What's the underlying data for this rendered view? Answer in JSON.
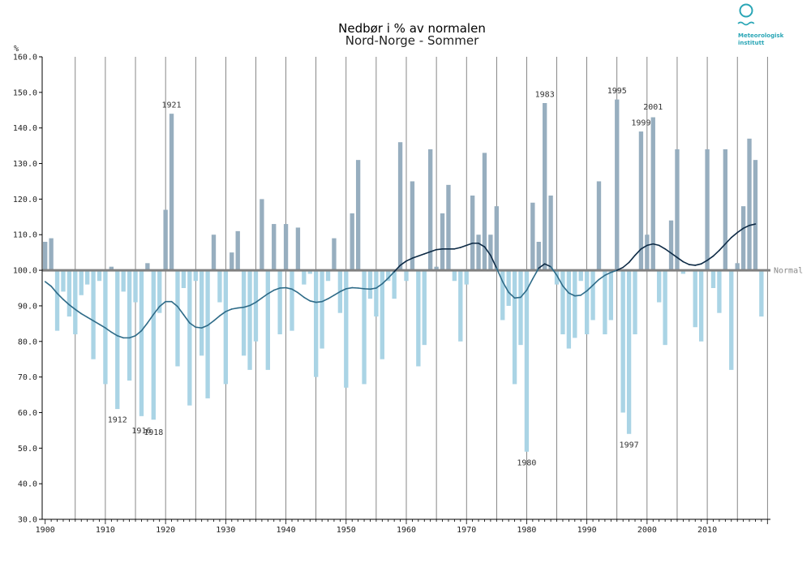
{
  "logo": {
    "line1": "Meteorologisk",
    "line2": "institutt",
    "color": "#2aa6b6"
  },
  "chart_data": {
    "type": "bar",
    "title": "Nedbør i % av normalen",
    "subtitle": "Nord-Norge - Sommer",
    "ylabel": "%",
    "ylim": [
      30,
      160
    ],
    "yticks": [
      30,
      40,
      50,
      60,
      70,
      80,
      90,
      100,
      110,
      120,
      130,
      140,
      150,
      160
    ],
    "ytick_labels": [
      "30.0",
      "40.0",
      "50.0",
      "60.0",
      "70.0",
      "80.0",
      "90.0",
      "100.0",
      "110.0",
      "120.0",
      "130.0",
      "140.0",
      "150.0",
      "160.0"
    ],
    "xlim": [
      1899.5,
      2020.5
    ],
    "xticks": [
      1900,
      1910,
      1920,
      1930,
      1940,
      1950,
      1960,
      1970,
      1980,
      1990,
      2000,
      2010
    ],
    "baseline": 100,
    "baseline_label": "Normal",
    "colors": {
      "above": "#97aebf",
      "below": "#aad4e5",
      "trend_low": "#2e6b88",
      "trend_high": "#0d2a45",
      "normal_line": "#808080"
    },
    "years": [
      1900,
      1901,
      1902,
      1903,
      1904,
      1905,
      1906,
      1907,
      1908,
      1909,
      1910,
      1911,
      1912,
      1913,
      1914,
      1915,
      1916,
      1917,
      1918,
      1919,
      1920,
      1921,
      1922,
      1923,
      1924,
      1925,
      1926,
      1927,
      1928,
      1929,
      1930,
      1931,
      1932,
      1933,
      1934,
      1935,
      1936,
      1937,
      1938,
      1939,
      1940,
      1941,
      1942,
      1943,
      1944,
      1945,
      1946,
      1947,
      1948,
      1949,
      1950,
      1951,
      1952,
      1953,
      1954,
      1955,
      1956,
      1957,
      1958,
      1959,
      1960,
      1961,
      1962,
      1963,
      1964,
      1965,
      1966,
      1967,
      1968,
      1969,
      1970,
      1971,
      1972,
      1973,
      1974,
      1975,
      1976,
      1977,
      1978,
      1979,
      1980,
      1981,
      1982,
      1983,
      1984,
      1985,
      1986,
      1987,
      1988,
      1989,
      1990,
      1991,
      1992,
      1993,
      1994,
      1995,
      1996,
      1997,
      1998,
      1999,
      2000,
      2001,
      2002,
      2003,
      2004,
      2005,
      2006,
      2007,
      2008,
      2009,
      2010,
      2011,
      2012,
      2013,
      2014,
      2015,
      2016,
      2017,
      2018,
      2019
    ],
    "values": [
      108,
      109,
      83,
      94,
      87,
      82,
      93,
      96,
      75,
      97,
      68,
      101,
      61,
      94,
      69,
      91,
      59,
      102,
      58,
      88,
      117,
      144,
      73,
      95,
      62,
      97,
      76,
      64,
      110,
      91,
      68,
      105,
      111,
      76,
      72,
      80,
      120,
      72,
      113,
      82,
      113,
      83,
      112,
      96,
      99,
      70,
      78,
      97,
      109,
      88,
      67,
      116,
      131,
      68,
      92,
      87,
      75,
      97,
      92,
      136,
      97,
      125,
      73,
      79,
      134,
      101,
      116,
      124,
      97,
      80,
      96,
      121,
      110,
      133,
      110,
      118,
      86,
      90,
      68,
      79,
      49,
      119,
      108,
      147,
      121,
      96,
      82,
      78,
      81,
      97,
      82,
      86,
      125,
      82,
      86,
      148,
      60,
      54,
      82,
      139,
      110,
      143,
      91,
      79,
      114,
      134,
      99,
      100,
      84,
      80,
      134,
      95,
      88,
      134,
      72,
      102,
      118,
      137,
      131,
      87
    ],
    "trend": [
      {
        "year": 1900,
        "value": 96.8
      },
      {
        "year": 1901,
        "value": 95.5
      },
      {
        "year": 1902,
        "value": 93.5
      },
      {
        "year": 1903,
        "value": 91.8
      },
      {
        "year": 1904,
        "value": 90.3
      },
      {
        "year": 1905,
        "value": 89.0
      },
      {
        "year": 1906,
        "value": 87.8
      },
      {
        "year": 1907,
        "value": 86.8
      },
      {
        "year": 1908,
        "value": 85.8
      },
      {
        "year": 1909,
        "value": 84.8
      },
      {
        "year": 1910,
        "value": 83.8
      },
      {
        "year": 1911,
        "value": 82.6
      },
      {
        "year": 1912,
        "value": 81.6
      },
      {
        "year": 1913,
        "value": 81.0
      },
      {
        "year": 1914,
        "value": 81.0
      },
      {
        "year": 1915,
        "value": 81.6
      },
      {
        "year": 1916,
        "value": 83.0
      },
      {
        "year": 1917,
        "value": 85.2
      },
      {
        "year": 1918,
        "value": 87.6
      },
      {
        "year": 1919,
        "value": 89.8
      },
      {
        "year": 1920,
        "value": 91.2
      },
      {
        "year": 1921,
        "value": 91.2
      },
      {
        "year": 1922,
        "value": 89.8
      },
      {
        "year": 1923,
        "value": 87.5
      },
      {
        "year": 1924,
        "value": 85.2
      },
      {
        "year": 1925,
        "value": 84.0
      },
      {
        "year": 1926,
        "value": 83.8
      },
      {
        "year": 1927,
        "value": 84.5
      },
      {
        "year": 1928,
        "value": 85.8
      },
      {
        "year": 1929,
        "value": 87.2
      },
      {
        "year": 1930,
        "value": 88.4
      },
      {
        "year": 1931,
        "value": 89.1
      },
      {
        "year": 1932,
        "value": 89.4
      },
      {
        "year": 1933,
        "value": 89.6
      },
      {
        "year": 1934,
        "value": 90.1
      },
      {
        "year": 1935,
        "value": 91.0
      },
      {
        "year": 1936,
        "value": 92.2
      },
      {
        "year": 1937,
        "value": 93.4
      },
      {
        "year": 1938,
        "value": 94.4
      },
      {
        "year": 1939,
        "value": 95.0
      },
      {
        "year": 1940,
        "value": 95.1
      },
      {
        "year": 1941,
        "value": 94.7
      },
      {
        "year": 1942,
        "value": 93.7
      },
      {
        "year": 1943,
        "value": 92.4
      },
      {
        "year": 1944,
        "value": 91.4
      },
      {
        "year": 1945,
        "value": 91.0
      },
      {
        "year": 1946,
        "value": 91.2
      },
      {
        "year": 1947,
        "value": 92.0
      },
      {
        "year": 1948,
        "value": 93.0
      },
      {
        "year": 1949,
        "value": 94.0
      },
      {
        "year": 1950,
        "value": 94.8
      },
      {
        "year": 1951,
        "value": 95.1
      },
      {
        "year": 1952,
        "value": 95.0
      },
      {
        "year": 1953,
        "value": 94.8
      },
      {
        "year": 1954,
        "value": 94.7
      },
      {
        "year": 1955,
        "value": 95.0
      },
      {
        "year": 1956,
        "value": 96.2
      },
      {
        "year": 1957,
        "value": 97.8
      },
      {
        "year": 1958,
        "value": 99.6
      },
      {
        "year": 1959,
        "value": 101.4
      },
      {
        "year": 1960,
        "value": 102.6
      },
      {
        "year": 1961,
        "value": 103.4
      },
      {
        "year": 1962,
        "value": 104.0
      },
      {
        "year": 1963,
        "value": 104.6
      },
      {
        "year": 1964,
        "value": 105.2
      },
      {
        "year": 1965,
        "value": 105.8
      },
      {
        "year": 1966,
        "value": 106.0
      },
      {
        "year": 1967,
        "value": 106.0
      },
      {
        "year": 1968,
        "value": 106.0
      },
      {
        "year": 1969,
        "value": 106.4
      },
      {
        "year": 1970,
        "value": 107.0
      },
      {
        "year": 1971,
        "value": 107.6
      },
      {
        "year": 1972,
        "value": 107.6
      },
      {
        "year": 1973,
        "value": 106.6
      },
      {
        "year": 1974,
        "value": 104.2
      },
      {
        "year": 1975,
        "value": 100.6
      },
      {
        "year": 1976,
        "value": 96.8
      },
      {
        "year": 1977,
        "value": 93.8
      },
      {
        "year": 1978,
        "value": 92.2
      },
      {
        "year": 1979,
        "value": 92.4
      },
      {
        "year": 1980,
        "value": 94.4
      },
      {
        "year": 1981,
        "value": 97.6
      },
      {
        "year": 1982,
        "value": 100.6
      },
      {
        "year": 1983,
        "value": 101.8
      },
      {
        "year": 1984,
        "value": 101.0
      },
      {
        "year": 1985,
        "value": 98.6
      },
      {
        "year": 1986,
        "value": 95.6
      },
      {
        "year": 1987,
        "value": 93.6
      },
      {
        "year": 1988,
        "value": 92.8
      },
      {
        "year": 1989,
        "value": 93.0
      },
      {
        "year": 1990,
        "value": 94.2
      },
      {
        "year": 1991,
        "value": 95.8
      },
      {
        "year": 1992,
        "value": 97.4
      },
      {
        "year": 1993,
        "value": 98.6
      },
      {
        "year": 1994,
        "value": 99.4
      },
      {
        "year": 1995,
        "value": 100.0
      },
      {
        "year": 1996,
        "value": 100.8
      },
      {
        "year": 1997,
        "value": 102.2
      },
      {
        "year": 1998,
        "value": 104.2
      },
      {
        "year": 1999,
        "value": 106.0
      },
      {
        "year": 2000,
        "value": 107.0
      },
      {
        "year": 2001,
        "value": 107.4
      },
      {
        "year": 2002,
        "value": 107.0
      },
      {
        "year": 2003,
        "value": 106.0
      },
      {
        "year": 2004,
        "value": 104.8
      },
      {
        "year": 2005,
        "value": 103.6
      },
      {
        "year": 2006,
        "value": 102.4
      },
      {
        "year": 2007,
        "value": 101.6
      },
      {
        "year": 2008,
        "value": 101.4
      },
      {
        "year": 2009,
        "value": 101.8
      },
      {
        "year": 2010,
        "value": 102.8
      },
      {
        "year": 2011,
        "value": 104.0
      },
      {
        "year": 2012,
        "value": 105.6
      },
      {
        "year": 2013,
        "value": 107.4
      },
      {
        "year": 2014,
        "value": 109.2
      },
      {
        "year": 2015,
        "value": 110.6
      },
      {
        "year": 2016,
        "value": 111.8
      },
      {
        "year": 2017,
        "value": 112.6
      },
      {
        "year": 2018,
        "value": 113.0
      }
    ],
    "annotations": [
      {
        "label": "1912",
        "year": 1912,
        "value": 58,
        "anchor": "below"
      },
      {
        "label": "1916",
        "year": 1916,
        "value": 55,
        "anchor": "below"
      },
      {
        "label": "1918",
        "year": 1918,
        "value": 54.5,
        "anchor": "below"
      },
      {
        "label": "1921",
        "year": 1921,
        "value": 146.5,
        "anchor": "above"
      },
      {
        "label": "1980",
        "year": 1980,
        "value": 46,
        "anchor": "below"
      },
      {
        "label": "1983",
        "year": 1983,
        "value": 149.5,
        "anchor": "above"
      },
      {
        "label": "1995",
        "year": 1995,
        "value": 150.5,
        "anchor": "above"
      },
      {
        "label": "1997",
        "year": 1997,
        "value": 51,
        "anchor": "below"
      },
      {
        "label": "1999",
        "year": 1999,
        "value": 141.5,
        "anchor": "above"
      },
      {
        "label": "2001",
        "year": 2001,
        "value": 146,
        "anchor": "above"
      }
    ]
  }
}
